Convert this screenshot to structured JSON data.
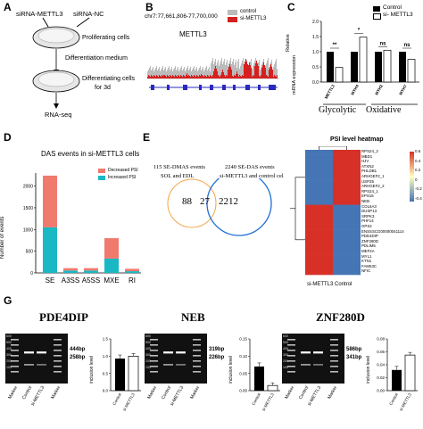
{
  "panels": {
    "A": "A",
    "B": "B",
    "C": "C",
    "D": "D",
    "E": "E",
    "F": "F",
    "G": "G"
  },
  "panelA": {
    "sirna_mettl3": "siRNA-METTL3",
    "sirna_nc": "siRNA-NC",
    "proliferating": "Proliferating cells",
    "diff_medium": "Differentiation medium",
    "differentiating_1": "Differentiating cells",
    "differentiating_2": "for 3d",
    "rnaseq": "RNA-seq"
  },
  "panelB": {
    "coord": "chr7:77,661,806-77,700,000",
    "legend_control": "control",
    "legend_si": "si-METTL3",
    "gene": "METTL3",
    "colors": {
      "control": "#bbbbbb",
      "si": "#d62020",
      "gene": "#2a2abf"
    }
  },
  "panelC": {
    "legend_control": "Control",
    "legend_si": "si- METTL3",
    "ylabel_1": "Relative",
    "ylabel_2": "mRNA expression",
    "group_glycolytic": "Glycolytic",
    "group_oxidative": "Oxidative",
    "sig": [
      "**",
      "*",
      "ns",
      "ns"
    ]
  },
  "panelD": {
    "title": "DAS events in si-METTL3 cells",
    "legend_decreased": "Decreased PSI",
    "legend_increased": "Increased PSI",
    "ylabel": "Number of events",
    "colors": {
      "decreased": "#f07a6e",
      "increased": "#19b8c4"
    }
  },
  "panelE": {
    "left_1": "115 SE-DMAS events",
    "left_2": "SOL and EDL",
    "right_1": "2240 SE-DAS events",
    "right_2": "si-METTL3 and control cell",
    "left_only": "88",
    "overlap": "27",
    "right_only": "2212"
  },
  "panelF": {
    "title": "PSI level heatmap",
    "genes": [
      "RPS24_2",
      "MBD1",
      "HJV",
      "ATXN2",
      "PHLDB1",
      "ARHGEF2_1",
      "USP25",
      "ARHGEF2_2",
      "RPS24_1",
      "EPS15",
      "NEB",
      "COL6A3",
      "DUSP13",
      "SRPK3",
      "PHF14",
      "GPS2",
      "ENSSSCG00000041114",
      "PDE4DIP",
      "ZNF280D",
      "PDLIM5",
      "MEF2A",
      "MYL1",
      "KTN1",
      "FAM53C",
      "NFIC"
    ],
    "col_si": "si-METTL3",
    "col_control": "Control",
    "scale": [
      "0.6",
      "0.4",
      "0.2",
      "0",
      "-0.2",
      "-0.4"
    ],
    "colors": {
      "high": "#d73027",
      "low": "#4575b4",
      "mid": "#ffffbf"
    }
  },
  "panelG": {
    "genes": [
      "PDE4DIP",
      "NEB",
      "ZNF280D"
    ],
    "lanes": [
      "Marker",
      "Control",
      "si-METTL3",
      "Marker"
    ],
    "ladder": [
      "600",
      "500",
      "400",
      "300",
      "200",
      "100"
    ],
    "bands": [
      [
        "444bp",
        "258bp"
      ],
      [
        "319bp",
        "226bp"
      ],
      [
        "586bp",
        "341bp"
      ]
    ],
    "ylabel": "inclusion level",
    "bar_labels": [
      "Control",
      "si-METTL3"
    ]
  },
  "chart_data": [
    {
      "type": "bar",
      "title": "",
      "ylabel": "Relative mRNA expression",
      "categories": [
        "METTL3",
        "MYH4",
        "MYH2",
        "MYH7"
      ],
      "series": [
        {
          "name": "Control",
          "values": [
            1.0,
            1.0,
            1.0,
            1.0
          ]
        },
        {
          "name": "si- METTL3",
          "values": [
            0.48,
            1.48,
            1.05,
            0.75
          ]
        }
      ],
      "ylim": [
        0,
        2.0
      ],
      "yticks": [
        "0.0",
        "0.5",
        "1.0",
        "1.5",
        "2.0"
      ]
    },
    {
      "type": "bar",
      "title": "DAS events in si-METTL3 cells",
      "ylabel": "Number of events",
      "categories": [
        "SE",
        "A3SS",
        "A5SS",
        "MXE",
        "RI"
      ],
      "series": [
        {
          "name": "Increased PSI",
          "values": [
            1050,
            55,
            55,
            330,
            40
          ]
        },
        {
          "name": "Decreased PSI",
          "values": [
            1190,
            55,
            55,
            470,
            55
          ]
        }
      ],
      "ylim": [
        0,
        2300
      ],
      "yticks": [
        "0",
        "500",
        "1000",
        "1500",
        "2000"
      ]
    },
    {
      "type": "bar",
      "title": "PDE4DIP",
      "ylabel": "inclusion level",
      "categories": [
        "Control",
        "si-METTL3"
      ],
      "values": [
        0.93,
        1.0
      ],
      "ylim": [
        0,
        1.5
      ],
      "yticks": [
        "0.0",
        "0.5",
        "1.0",
        "1.5"
      ]
    },
    {
      "type": "bar",
      "title": "NEB",
      "ylabel": "inclusion level",
      "categories": [
        "Control",
        "si-METTL3"
      ],
      "values": [
        0.07,
        0.015
      ],
      "ylim": [
        0,
        0.15
      ],
      "yticks": [
        "0.00",
        "0.05",
        "0.10",
        "0.15"
      ]
    },
    {
      "type": "bar",
      "title": "ZNF280D",
      "ylabel": "inclusion level",
      "categories": [
        "Control",
        "si-METTL3"
      ],
      "values": [
        0.032,
        0.055
      ],
      "ylim": [
        0,
        0.08
      ],
      "yticks": [
        "0.00",
        "0.02",
        "0.04",
        "0.06",
        "0.08"
      ]
    }
  ]
}
